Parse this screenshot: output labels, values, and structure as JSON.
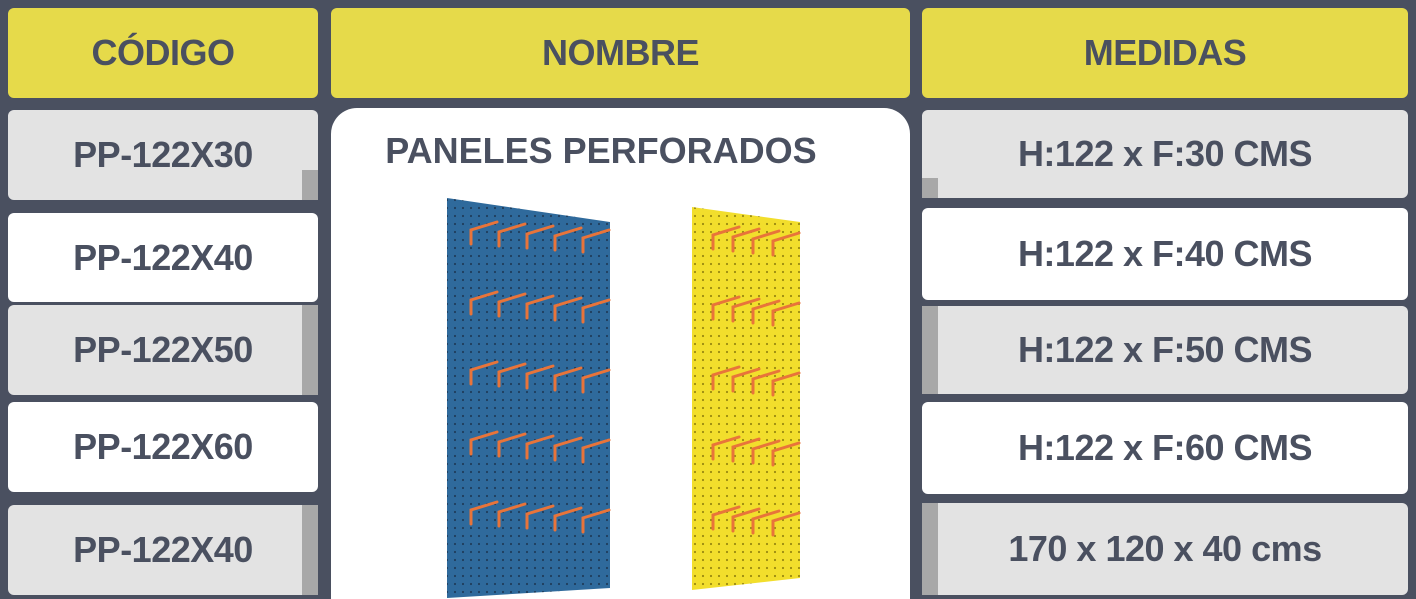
{
  "header": {
    "columns": [
      "CÓDIGO",
      "NOMBRE",
      "MEDIDAS"
    ]
  },
  "product": {
    "name": "PANELES PERFORADOS"
  },
  "table": {
    "rows": [
      [
        "PP-122X30",
        "H:122 x F:30 CMS"
      ],
      [
        "PP-122X40",
        "H:122 x F:40 CMS"
      ],
      [
        "PP-122X50",
        "H:122 x F:50 CMS"
      ],
      [
        "PP-122X60",
        "H:122 x F:60 CMS"
      ],
      [
        "PP-122X40",
        "170 x 120 x 40 cms"
      ]
    ]
  }
}
